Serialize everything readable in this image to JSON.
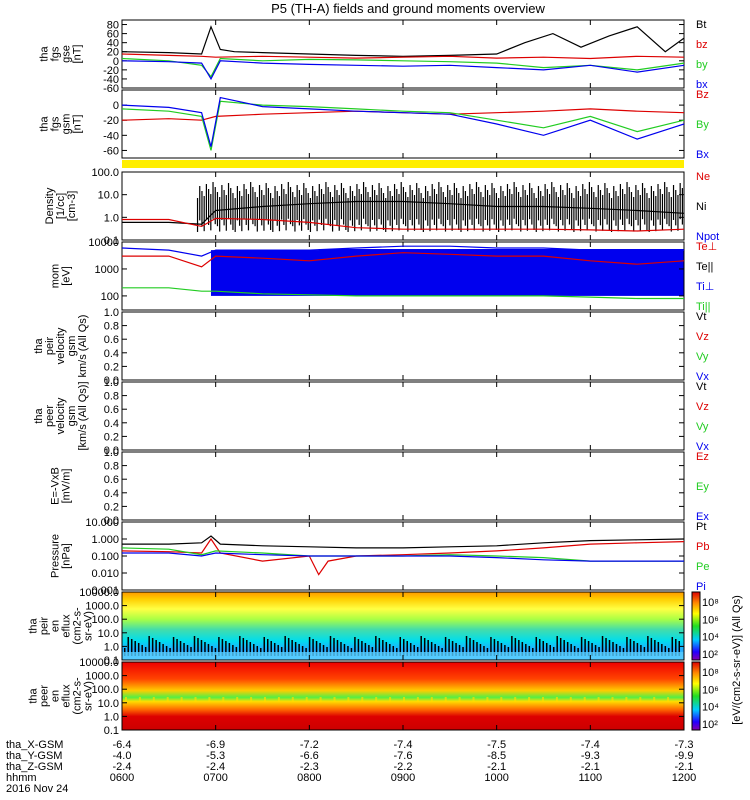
{
  "title": "P5 (TH-A) fields and ground moments overview",
  "date_label": "2016 Nov 24",
  "x_axis": {
    "times": [
      "0600",
      "0700",
      "0800",
      "0900",
      "1000",
      "1100",
      "1200"
    ],
    "rows": [
      {
        "label": "tha_X-GSM",
        "values": [
          "-6.4",
          "-6.9",
          "-7.2",
          "-7.4",
          "-7.5",
          "-7.4",
          "-7.3"
        ]
      },
      {
        "label": "tha_Y-GSM",
        "values": [
          "-4.0",
          "-5.3",
          "-6.6",
          "-7.6",
          "-8.5",
          "-9.3",
          "-9.9"
        ]
      },
      {
        "label": "tha_Z-GSM",
        "values": [
          "-2.4",
          "-2.4",
          "-2.3",
          "-2.2",
          "-2.1",
          "-2.1",
          "-2.1"
        ]
      },
      {
        "label": "hhmm",
        "values": []
      }
    ]
  },
  "colors": {
    "black": "#000000",
    "red": "#dd0000",
    "green": "#22cc22",
    "blue": "#0000ee",
    "yellow": "#ffee00"
  },
  "chart_data": [
    {
      "id": "panel-fgs",
      "type": "line",
      "ylabel": [
        "tha",
        "fgs",
        "gse",
        "[nT]"
      ],
      "ylim": [
        -60,
        90
      ],
      "yticks": [
        "80",
        "60",
        "40",
        "20",
        "0",
        "-20",
        "-40",
        "-60"
      ],
      "legend": [
        {
          "name": "Bt",
          "color": "#000000"
        },
        {
          "name": "bz",
          "color": "#dd0000"
        },
        {
          "name": "by",
          "color": "#22cc22"
        },
        {
          "name": "bx",
          "color": "#0000ee"
        }
      ],
      "series": [
        {
          "name": "Bt",
          "color": "#000000",
          "x": [
            6.0,
            6.5,
            6.85,
            6.95,
            7.05,
            7.2,
            7.5,
            8.0,
            8.5,
            9.0,
            9.5,
            10.0,
            10.3,
            10.6,
            10.9,
            11.2,
            11.5,
            11.8,
            12.0
          ],
          "y": [
            20,
            18,
            15,
            75,
            25,
            20,
            18,
            15,
            12,
            10,
            12,
            15,
            40,
            60,
            30,
            55,
            75,
            20,
            50
          ]
        },
        {
          "name": "bz",
          "color": "#dd0000",
          "x": [
            6.0,
            6.5,
            6.85,
            7.0,
            7.5,
            8.0,
            8.5,
            9.0,
            9.5,
            10.0,
            10.5,
            11.0,
            11.5,
            12.0
          ],
          "y": [
            15,
            12,
            10,
            8,
            10,
            8,
            6,
            8,
            10,
            6,
            8,
            5,
            10,
            8
          ]
        },
        {
          "name": "by",
          "color": "#22cc22",
          "x": [
            6.0,
            6.5,
            6.85,
            6.95,
            7.05,
            7.5,
            8.0,
            8.5,
            9.0,
            9.5,
            10.0,
            10.5,
            11.0,
            11.5,
            12.0
          ],
          "y": [
            5,
            0,
            -10,
            -35,
            5,
            0,
            3,
            2,
            0,
            -2,
            -5,
            -15,
            -10,
            -20,
            -5
          ]
        },
        {
          "name": "bx",
          "color": "#0000ee",
          "x": [
            6.0,
            6.5,
            6.85,
            6.95,
            7.05,
            7.5,
            8.0,
            8.5,
            9.0,
            9.5,
            10.0,
            10.5,
            11.0,
            11.5,
            12.0
          ],
          "y": [
            0,
            -2,
            -5,
            -40,
            0,
            -5,
            -8,
            -10,
            -12,
            -10,
            -15,
            -20,
            -10,
            -25,
            -10
          ]
        }
      ]
    },
    {
      "id": "panel-fgs-gsm",
      "type": "line",
      "ylabel": [
        "tha",
        "fgs",
        "gsm",
        "[nT]"
      ],
      "ylim": [
        -70,
        20
      ],
      "yticks": [
        "0",
        "-20",
        "-40",
        "-60"
      ],
      "legend": [
        {
          "name": "Bz",
          "color": "#dd0000"
        },
        {
          "name": "By",
          "color": "#22cc22"
        },
        {
          "name": "Bx",
          "color": "#0000ee"
        }
      ],
      "series": [
        {
          "name": "Bz",
          "color": "#dd0000",
          "x": [
            6.0,
            6.5,
            6.85,
            7.0,
            7.5,
            8.0,
            8.5,
            9.0,
            9.5,
            10.0,
            10.5,
            11.0,
            11.5,
            12.0
          ],
          "y": [
            -20,
            -18,
            -20,
            -15,
            -12,
            -10,
            -8,
            -10,
            -12,
            -10,
            -8,
            -5,
            -8,
            -10
          ]
        },
        {
          "name": "By",
          "color": "#22cc22",
          "x": [
            6.0,
            6.5,
            6.85,
            6.95,
            7.05,
            7.5,
            8.0,
            8.5,
            9.0,
            9.5,
            10.0,
            10.5,
            11.0,
            11.5,
            12.0
          ],
          "y": [
            -5,
            -8,
            -15,
            -60,
            5,
            0,
            -2,
            -5,
            -8,
            -10,
            -20,
            -30,
            -15,
            -35,
            -20
          ]
        },
        {
          "name": "Bx",
          "color": "#0000ee",
          "x": [
            6.0,
            6.5,
            6.85,
            6.95,
            7.05,
            7.5,
            8.0,
            8.5,
            9.0,
            9.5,
            10.0,
            10.5,
            11.0,
            11.5,
            12.0
          ],
          "y": [
            0,
            -3,
            -10,
            -55,
            10,
            -2,
            -5,
            -8,
            -10,
            -12,
            -25,
            -40,
            -20,
            -45,
            -25
          ]
        }
      ]
    },
    {
      "id": "panel-density",
      "type": "line",
      "scale": "log",
      "ylabel": [
        "Density",
        "[1/cc]",
        "[cm-3]"
      ],
      "ylim": [
        0.1,
        100
      ],
      "yticks": [
        "100.0",
        "10.0",
        "1.0",
        "0.1"
      ],
      "legend": [
        {
          "name": "Ne",
          "color": "#dd0000"
        },
        {
          "name": "Ni",
          "color": "#000000"
        },
        {
          "name": "Npot",
          "color": "#0000ee"
        }
      ],
      "series": [
        {
          "name": "Ni",
          "color": "#000000",
          "x": [
            6.0,
            6.5,
            6.85,
            7.0,
            7.5,
            8.0,
            8.5,
            9.0,
            9.5,
            10.0,
            10.5,
            11.0,
            11.5,
            12.0
          ],
          "y": [
            0.6,
            0.6,
            0.5,
            2.0,
            3.0,
            4.0,
            5.0,
            5.0,
            4.0,
            3.0,
            3.0,
            2.5,
            2.0,
            1.5
          ]
        },
        {
          "name": "Ne",
          "color": "#dd0000",
          "x": [
            6.0,
            6.5,
            6.85,
            7.0,
            7.5,
            8.0,
            8.5,
            9.0,
            9.5,
            10.0,
            10.5,
            11.0,
            11.5,
            12.0
          ],
          "y": [
            0.8,
            0.8,
            0.4,
            0.9,
            0.8,
            0.6,
            0.35,
            0.3,
            0.3,
            0.3,
            0.3,
            0.28,
            0.25,
            0.3
          ]
        }
      ]
    },
    {
      "id": "panel-temp",
      "type": "line",
      "scale": "log",
      "ylabel": [
        "mom",
        "[eV]"
      ],
      "ylim": [
        30,
        10000
      ],
      "yticks": [
        "10000",
        "1000",
        "100"
      ],
      "legend": [
        {
          "name": "Te⊥",
          "color": "#dd0000"
        },
        {
          "name": "Te||",
          "color": "#000000"
        },
        {
          "name": "Ti⊥",
          "color": "#0000ee"
        },
        {
          "name": "Ti||",
          "color": "#22cc22"
        }
      ],
      "series": [
        {
          "name": "Ti⊥",
          "color": "#0000ee",
          "x": [
            6.0,
            6.5,
            6.85,
            7.0,
            7.5,
            8.0,
            8.5,
            9.0,
            9.5,
            10.0,
            10.5,
            11.0,
            11.5,
            12.0
          ],
          "y": [
            6000,
            5000,
            3000,
            5000,
            5000,
            5000,
            6000,
            7000,
            7000,
            6000,
            6000,
            5000,
            5000,
            5000
          ]
        },
        {
          "name": "Te⊥",
          "color": "#dd0000",
          "x": [
            6.0,
            6.5,
            6.85,
            7.0,
            7.5,
            8.0,
            8.5,
            9.0,
            9.5,
            10.0,
            10.5,
            11.0,
            11.5,
            12.0
          ],
          "y": [
            3000,
            3000,
            1200,
            3000,
            2500,
            2000,
            3000,
            4000,
            3500,
            3000,
            3000,
            2000,
            1500,
            2000
          ]
        },
        {
          "name": "Ti||",
          "color": "#22cc22",
          "x": [
            6.0,
            6.5,
            6.85,
            7.0,
            7.5,
            8.0,
            8.5,
            9.0,
            9.5,
            10.0,
            10.5,
            11.0,
            11.5,
            12.0
          ],
          "y": [
            200,
            200,
            150,
            150,
            120,
            110,
            100,
            100,
            100,
            100,
            100,
            90,
            80,
            80
          ]
        }
      ]
    },
    {
      "id": "panel-peir-velocity",
      "type": "line",
      "ylabel": [
        "tha",
        "peir",
        "velocity",
        "gsm",
        "km/s (All Qs)"
      ],
      "ylim": [
        0,
        1
      ],
      "yticks": [
        "1.0",
        "0.8",
        "0.6",
        "0.4",
        "0.2",
        "0.0"
      ],
      "legend": [
        {
          "name": "Vt",
          "color": "#000000"
        },
        {
          "name": "Vz",
          "color": "#dd0000"
        },
        {
          "name": "Vy",
          "color": "#22cc22"
        },
        {
          "name": "Vx",
          "color": "#0000ee"
        }
      ],
      "series": []
    },
    {
      "id": "panel-peer-velocity",
      "type": "line",
      "ylabel": [
        "tha",
        "peer",
        "velocity",
        "gsm",
        "[km/s (All Qs)]"
      ],
      "ylim": [
        0,
        1
      ],
      "yticks": [
        "1.0",
        "0.8",
        "0.6",
        "0.4",
        "0.2",
        "0.0"
      ],
      "legend": [
        {
          "name": "Vt",
          "color": "#000000"
        },
        {
          "name": "Vz",
          "color": "#dd0000"
        },
        {
          "name": "Vy",
          "color": "#22cc22"
        },
        {
          "name": "Vx",
          "color": "#0000ee"
        }
      ],
      "series": []
    },
    {
      "id": "panel-efield",
      "type": "line",
      "ylabel": [
        "E=-VxB",
        "[mV/m]"
      ],
      "ylim": [
        0,
        1
      ],
      "yticks": [
        "1.0",
        "0.8",
        "0.6",
        "0.4",
        "0.2",
        "0.0"
      ],
      "legend": [
        {
          "name": "Ez",
          "color": "#dd0000"
        },
        {
          "name": "Ey",
          "color": "#22cc22"
        },
        {
          "name": "Ex",
          "color": "#0000ee"
        }
      ],
      "series": []
    },
    {
      "id": "panel-pressure",
      "type": "line",
      "scale": "log",
      "ylabel": [
        "Pressure",
        "[nPa]"
      ],
      "ylim": [
        0.001,
        10
      ],
      "yticks": [
        "10.000",
        "1.000",
        "0.100",
        "0.010",
        "0.001"
      ],
      "legend": [
        {
          "name": "Pt",
          "color": "#000000"
        },
        {
          "name": "Pb",
          "color": "#dd0000"
        },
        {
          "name": "Pe",
          "color": "#22cc22"
        },
        {
          "name": "Pi",
          "color": "#0000ee"
        }
      ],
      "series": [
        {
          "name": "Pt",
          "color": "#000000",
          "x": [
            6.0,
            6.5,
            6.85,
            6.95,
            7.05,
            7.5,
            8.0,
            8.5,
            9.0,
            9.5,
            10.0,
            10.5,
            11.0,
            11.5,
            12.0
          ],
          "y": [
            0.5,
            0.5,
            0.6,
            1.5,
            0.5,
            0.4,
            0.35,
            0.3,
            0.3,
            0.35,
            0.4,
            0.6,
            0.8,
            0.9,
            1.0
          ]
        },
        {
          "name": "Pb",
          "color": "#dd0000",
          "x": [
            6.0,
            6.5,
            6.85,
            6.95,
            7.05,
            7.5,
            8.0,
            8.1,
            8.2,
            8.5,
            9.0,
            9.5,
            10.0,
            10.5,
            11.0,
            11.5,
            12.0
          ],
          "y": [
            0.2,
            0.18,
            0.15,
            1.0,
            0.15,
            0.05,
            0.1,
            0.008,
            0.05,
            0.1,
            0.12,
            0.15,
            0.2,
            0.3,
            0.5,
            0.6,
            0.7
          ]
        },
        {
          "name": "Pe",
          "color": "#22cc22",
          "x": [
            6.0,
            6.5,
            6.85,
            7.0,
            7.5,
            8.0,
            8.5,
            9.0,
            9.5,
            10.0,
            10.5,
            11.0,
            11.5,
            12.0
          ],
          "y": [
            0.3,
            0.25,
            0.12,
            0.2,
            0.15,
            0.1,
            0.1,
            0.1,
            0.12,
            0.1,
            0.08,
            0.05,
            0.05,
            0.05
          ]
        },
        {
          "name": "Pi",
          "color": "#0000ee",
          "x": [
            6.0,
            6.5,
            6.85,
            7.0,
            7.5,
            8.0,
            8.5,
            9.0,
            9.5,
            10.0,
            10.5,
            11.0,
            11.5,
            12.0
          ],
          "y": [
            0.15,
            0.15,
            0.1,
            0.15,
            0.12,
            0.1,
            0.1,
            0.1,
            0.1,
            0.08,
            0.06,
            0.05,
            0.05,
            0.05
          ]
        }
      ]
    },
    {
      "id": "panel-peir-spec",
      "type": "heatmap",
      "scale": "log",
      "ylabel": [
        "tha",
        "peir",
        "en",
        "eflux",
        "(cm2-s-",
        "sr-eV)"
      ],
      "ylim": [
        0.1,
        10000
      ],
      "yticks": [
        "10000.0",
        "1000.0",
        "100.0",
        "10.0",
        "1.0",
        "0.1"
      ]
    },
    {
      "id": "panel-peer-spec",
      "type": "heatmap",
      "scale": "log",
      "ylabel": [
        "tha",
        "peer",
        "en",
        "eflux",
        "(cm2-s-",
        "sr-eV)"
      ],
      "ylim": [
        0.1,
        10000
      ],
      "yticks": [
        "10000.0",
        "1000.0",
        "100.0",
        "10.0",
        "1.0",
        "0.1"
      ]
    }
  ],
  "colorbar": {
    "label": "[eV/(cm2-s-sr-eV)] (All Qs)",
    "ticks_upper": [
      "10⁸",
      "10⁶",
      "10⁴",
      "10²"
    ],
    "ticks_lower": [
      "10⁸",
      "10⁶",
      "10⁴",
      "10²"
    ]
  }
}
